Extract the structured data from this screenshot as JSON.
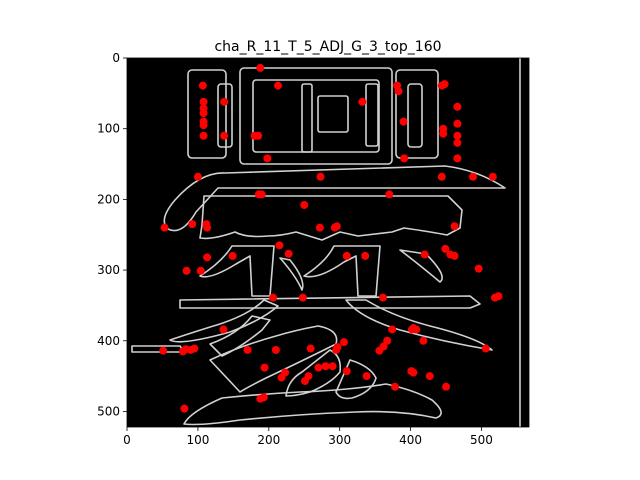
{
  "chart_data": {
    "type": "scatter",
    "title": "cha_R_11_T_5_ADJ_G_3_top_160",
    "xlabel": "",
    "ylabel": "",
    "xlim": [
      0,
      567
    ],
    "ylim": [
      522,
      0
    ],
    "y_inverted": true,
    "background_image": "grayscale glyph-outline image (black background, white contour strokes)",
    "xticks": [
      0,
      100,
      200,
      300,
      400,
      500
    ],
    "yticks": [
      0,
      100,
      200,
      300,
      400,
      500
    ],
    "grid": false,
    "legend": "none",
    "marker_color": "#ff0000",
    "points": [
      [
        188,
        14
      ],
      [
        107,
        39
      ],
      [
        213,
        39
      ],
      [
        381,
        39
      ],
      [
        448,
        37
      ],
      [
        444,
        39
      ],
      [
        383,
        47
      ],
      [
        108,
        62
      ],
      [
        137,
        62
      ],
      [
        332,
        62
      ],
      [
        108,
        71
      ],
      [
        108,
        78
      ],
      [
        108,
        90
      ],
      [
        108,
        95
      ],
      [
        108,
        110
      ],
      [
        137,
        110
      ],
      [
        390,
        90
      ],
      [
        446,
        100
      ],
      [
        446,
        107
      ],
      [
        466,
        69
      ],
      [
        466,
        93
      ],
      [
        466,
        110
      ],
      [
        466,
        120
      ],
      [
        180,
        110
      ],
      [
        185,
        110
      ],
      [
        198,
        142
      ],
      [
        391,
        142
      ],
      [
        466,
        142
      ],
      [
        100,
        168
      ],
      [
        273,
        168
      ],
      [
        444,
        168
      ],
      [
        488,
        168
      ],
      [
        516,
        168
      ],
      [
        186,
        193
      ],
      [
        190,
        193
      ],
      [
        370,
        193
      ],
      [
        250,
        208
      ],
      [
        92,
        235
      ],
      [
        112,
        235
      ],
      [
        53,
        240
      ],
      [
        113,
        240
      ],
      [
        272,
        240
      ],
      [
        293,
        240
      ],
      [
        296,
        238
      ],
      [
        462,
        238
      ],
      [
        215,
        265
      ],
      [
        228,
        277
      ],
      [
        449,
        270
      ],
      [
        456,
        278
      ],
      [
        462,
        280
      ],
      [
        149,
        280
      ],
      [
        113,
        282
      ],
      [
        420,
        278
      ],
      [
        310,
        280
      ],
      [
        336,
        280
      ],
      [
        84,
        301
      ],
      [
        104,
        301
      ],
      [
        496,
        298
      ],
      [
        206,
        339
      ],
      [
        248,
        339
      ],
      [
        361,
        339
      ],
      [
        519,
        339
      ],
      [
        524,
        337
      ],
      [
        136,
        384
      ],
      [
        374,
        384
      ],
      [
        402,
        384
      ],
      [
        404,
        382
      ],
      [
        408,
        384
      ],
      [
        418,
        400
      ],
      [
        306,
        402
      ],
      [
        367,
        400
      ],
      [
        362,
        408
      ],
      [
        356,
        414
      ],
      [
        295,
        413
      ],
      [
        297,
        409
      ],
      [
        259,
        411
      ],
      [
        210,
        413
      ],
      [
        170,
        413
      ],
      [
        95,
        411
      ],
      [
        90,
        413
      ],
      [
        83,
        412
      ],
      [
        79,
        415
      ],
      [
        51,
        414
      ],
      [
        506,
        411
      ],
      [
        194,
        438
      ],
      [
        270,
        438
      ],
      [
        280,
        436
      ],
      [
        290,
        436
      ],
      [
        310,
        443
      ],
      [
        338,
        450
      ],
      [
        401,
        443
      ],
      [
        404,
        445
      ],
      [
        427,
        450
      ],
      [
        450,
        465
      ],
      [
        378,
        465
      ],
      [
        223,
        445
      ],
      [
        218,
        452
      ],
      [
        256,
        450
      ],
      [
        251,
        457
      ],
      [
        193,
        480
      ],
      [
        188,
        482
      ],
      [
        81,
        496
      ]
    ]
  }
}
